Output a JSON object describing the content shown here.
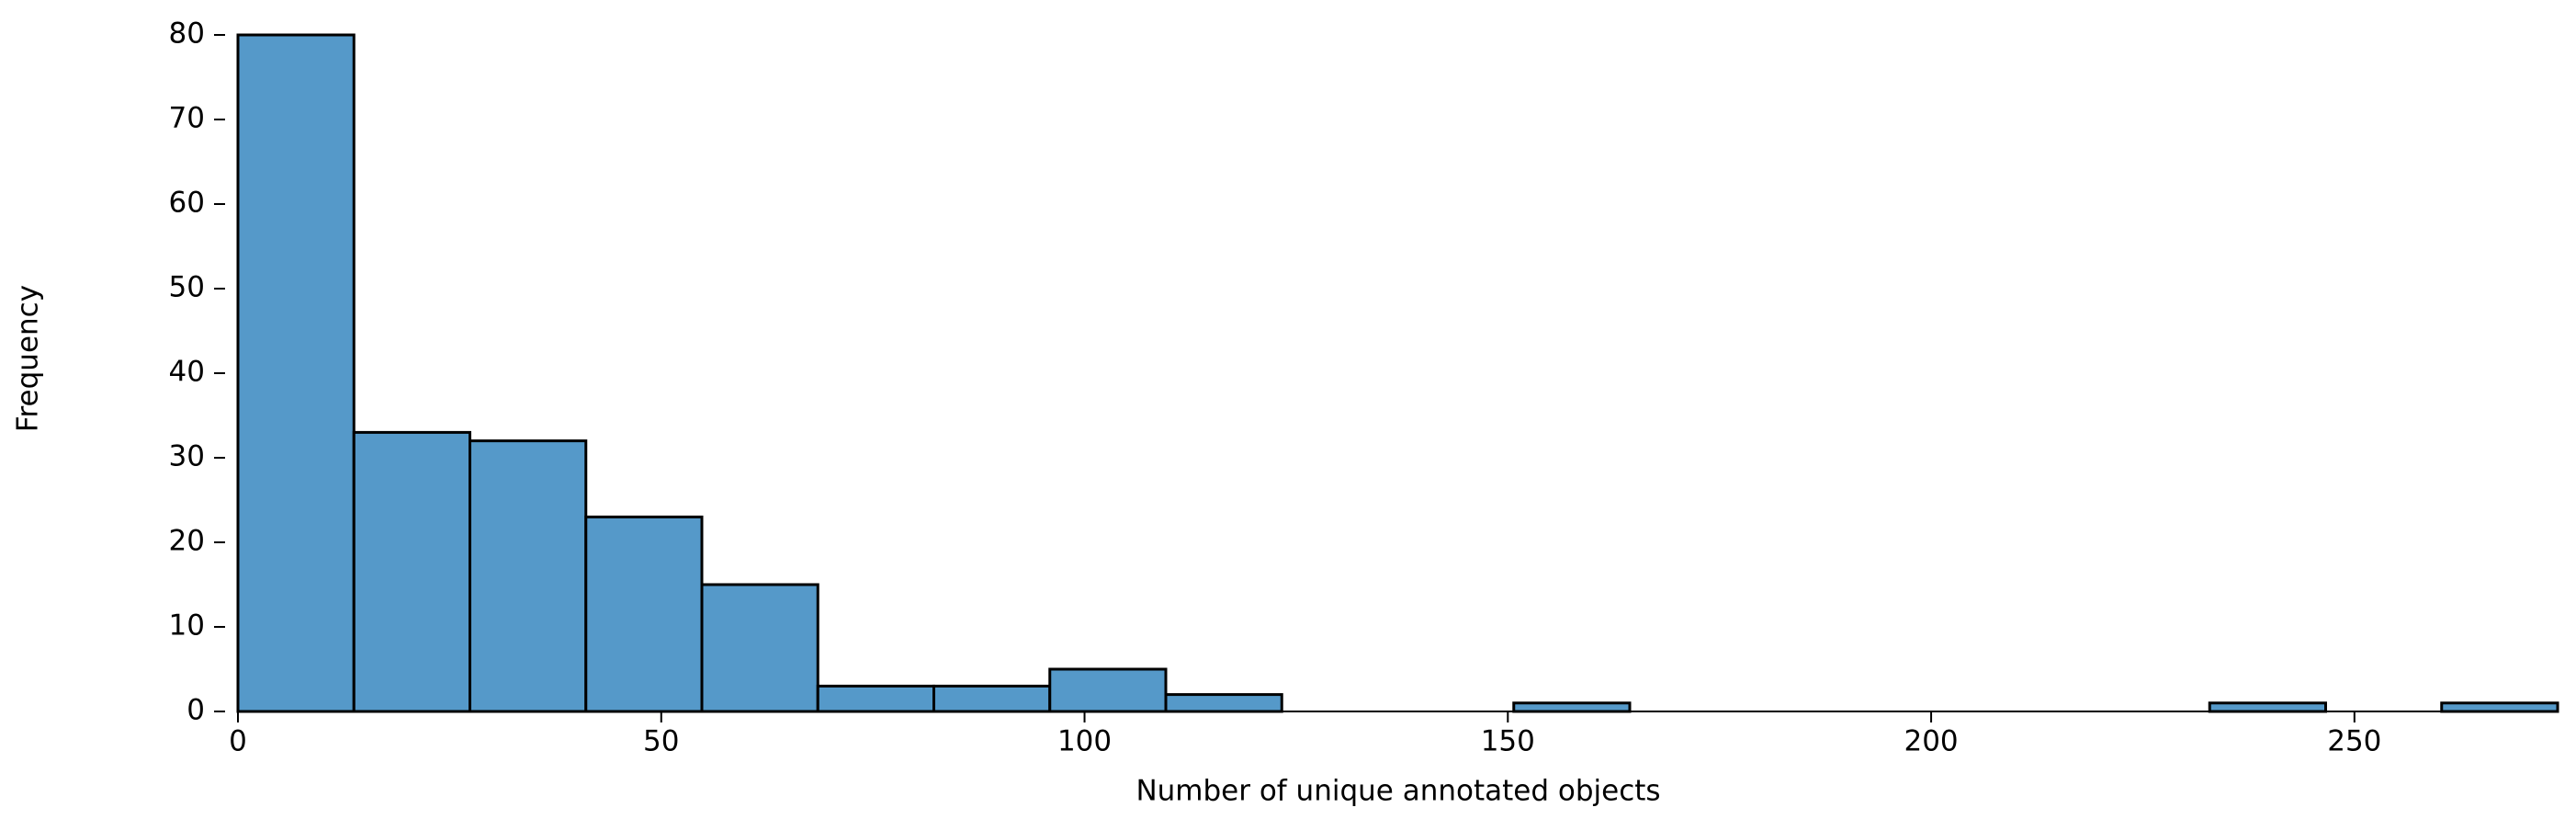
{
  "chart_data": {
    "type": "histogram",
    "xlabel": "Number of unique annotated objects",
    "ylabel": "Frequency",
    "bins": [
      0,
      13.7,
      27.4,
      41.1,
      54.8,
      68.5,
      82.2,
      95.9,
      109.6,
      123.3,
      137,
      150.7,
      164.4,
      178.1,
      191.8,
      205.5,
      219.2,
      232.9,
      246.6,
      260.3,
      274
    ],
    "values": [
      80,
      33,
      32,
      23,
      15,
      3,
      3,
      5,
      2,
      0,
      0,
      1,
      0,
      0,
      0,
      0,
      0,
      1,
      0,
      1
    ],
    "color": "#5599c9",
    "xlim": [
      0,
      274
    ],
    "xticks": [
      0,
      50,
      100,
      150,
      200,
      250
    ],
    "ylim": [
      0,
      80
    ],
    "yticks": [
      0,
      10,
      20,
      30,
      40,
      50,
      60,
      70,
      80
    ]
  }
}
